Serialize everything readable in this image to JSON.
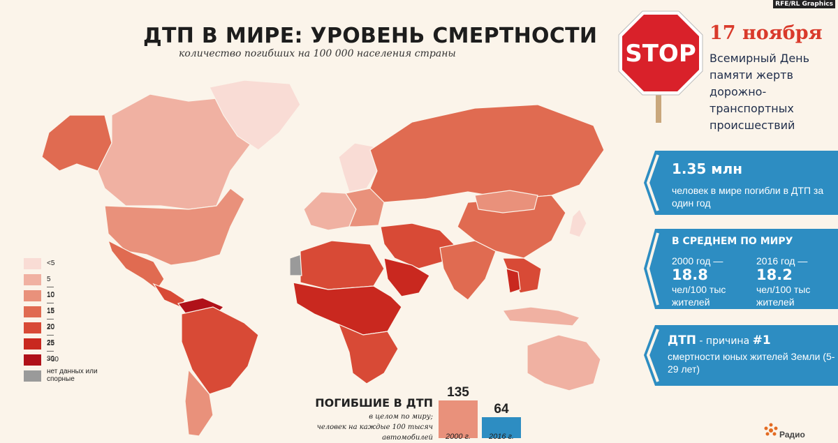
{
  "credit": "RFE/RL Graphics",
  "title": "ДТП В МИРЕ: УРОВЕНЬ СМЕРТНОСТИ",
  "subtitle": "количество погибших на 100 000 населения страны",
  "legend": [
    {
      "label": "<5",
      "color": "#f9dcd5"
    },
    {
      "label": "5—10",
      "color": "#f0b1a2"
    },
    {
      "label": "10—15",
      "color": "#e9917b"
    },
    {
      "label": "15—20",
      "color": "#e06b51"
    },
    {
      "label": "20—25",
      "color": "#d84a36"
    },
    {
      "label": "25—30",
      "color": "#c9281f"
    },
    {
      "label": ">30",
      "color": "#b01119"
    },
    {
      "label": "нет данных или спорные",
      "color": "#9a9a9a"
    }
  ],
  "deaths_panel": {
    "title": "ПОГИБШИЕ В ДТП",
    "sub1": "в целом по миру;",
    "sub2": "человек на каждые 100 тысяч",
    "sub3": "автомобилей",
    "bars": [
      {
        "value": "135",
        "year": "2000 г.",
        "color": "#e9917b"
      },
      {
        "value": "64",
        "year": "2016 г.",
        "color": "#2d8dc2"
      }
    ]
  },
  "stop_sign": {
    "text": "STOP"
  },
  "date": "17 ноября",
  "day_name": "Всемирный День памяти жертв дорожно-транспортных происшествий",
  "panel1": {
    "big": "1.35 млн",
    "text": "человек в мире погибли в ДТП за один год"
  },
  "panel2": {
    "heading": "В СРЕДНЕМ ПО МИРУ",
    "left": {
      "year": "2000 год —",
      "value": "18.8",
      "unit": "чел/100 тыс жителей"
    },
    "right": {
      "year": "2016 год —",
      "value": "18.2",
      "unit": "чел/100 тыс жителей"
    }
  },
  "panel3": {
    "lead": "ДТП",
    "dash": " - причина ",
    "rank": "#1",
    "text": "смертности юных жителей Земли (5-29 лет)"
  },
  "logo_text": "Радио",
  "colors": {
    "accent": "#d93a2b",
    "panel": "#2d8dc2",
    "panel_dark": "#1f6f9c",
    "background": "#fbf4ea"
  },
  "map_regions": [
    {
      "name": "Alaska",
      "bin": 3
    },
    {
      "name": "Canada",
      "bin": 1
    },
    {
      "name": "Greenland",
      "bin": 0
    },
    {
      "name": "United States",
      "bin": 2
    },
    {
      "name": "Mexico",
      "bin": 3
    },
    {
      "name": "Central America",
      "bin": 4
    },
    {
      "name": "Venezuela",
      "bin": 6
    },
    {
      "name": "Brazil",
      "bin": 4
    },
    {
      "name": "Argentina",
      "bin": 2
    },
    {
      "name": "Europe West",
      "bin": 1
    },
    {
      "name": "Europe East",
      "bin": 2
    },
    {
      "name": "Scandinavia",
      "bin": 0
    },
    {
      "name": "Russia",
      "bin": 3
    },
    {
      "name": "North Africa",
      "bin": 4
    },
    {
      "name": "Western Sahara",
      "bin": 7
    },
    {
      "name": "Central Africa",
      "bin": 5
    },
    {
      "name": "Southern Africa",
      "bin": 4
    },
    {
      "name": "Middle East",
      "bin": 4
    },
    {
      "name": "Saudi Arabia",
      "bin": 5
    },
    {
      "name": "India",
      "bin": 3
    },
    {
      "name": "China",
      "bin": 3
    },
    {
      "name": "Mongolia",
      "bin": 2
    },
    {
      "name": "Japan",
      "bin": 0
    },
    {
      "name": "Southeast Asia",
      "bin": 4
    },
    {
      "name": "Thailand",
      "bin": 5
    },
    {
      "name": "Indonesia",
      "bin": 1
    },
    {
      "name": "Australia",
      "bin": 1
    },
    {
      "name": "New Zealand",
      "bin": 1
    }
  ]
}
